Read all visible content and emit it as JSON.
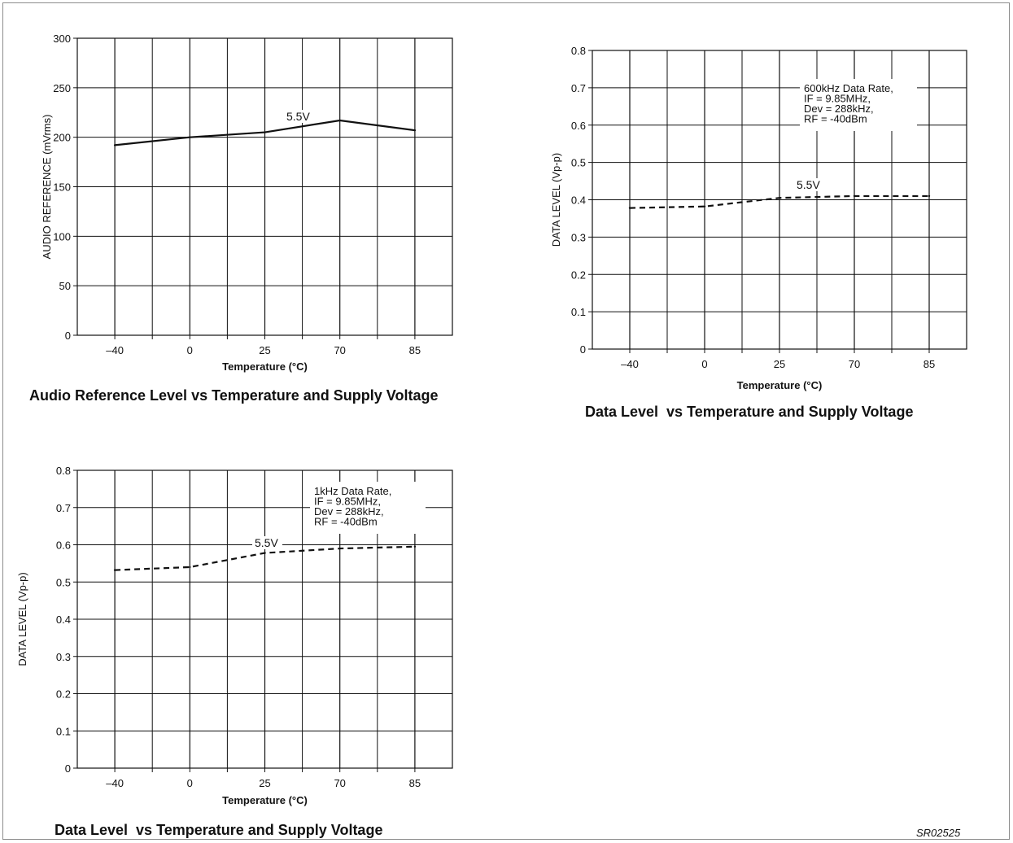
{
  "figure_code": "SR02525",
  "chart_data": [
    {
      "type": "line",
      "caption": "Audio Reference Level vs Temperature and Supply Voltage",
      "xlabel": "Temperature (°C)",
      "ylabel": "AUDIO REFERENCE (mVrms)",
      "categories": [
        "–40",
        "0",
        "25",
        "70",
        "85"
      ],
      "yticks": [
        "0",
        "50",
        "100",
        "150",
        "200",
        "250",
        "300"
      ],
      "ylim": [
        0,
        300
      ],
      "grid": true,
      "series": [
        {
          "name": "5.5V",
          "line_style": "solid",
          "values": [
            192,
            200,
            205,
            217,
            207
          ]
        }
      ]
    },
    {
      "type": "line",
      "caption": "Data Level  vs Temperature and Supply Voltage",
      "xlabel": "Temperature (°C)",
      "ylabel": "DATA LEVEL (Vp-p)",
      "categories": [
        "–40",
        "0",
        "25",
        "70",
        "85"
      ],
      "yticks": [
        "0",
        "0.1",
        "0.2",
        "0.3",
        "0.4",
        "0.5",
        "0.6",
        "0.7",
        "0.8"
      ],
      "ylim": [
        0,
        0.8
      ],
      "grid": true,
      "annotation": [
        "600kHz Data Rate,",
        "IF = 9.85MHz,",
        "Dev = 288kHz,",
        "RF = -40dBm"
      ],
      "series": [
        {
          "name": "5.5V",
          "line_style": "dashed",
          "values": [
            0.378,
            0.382,
            0.405,
            0.41,
            0.41
          ]
        }
      ]
    },
    {
      "type": "line",
      "caption": "Data Level  vs Temperature and Supply Voltage",
      "xlabel": "Temperature (°C)",
      "ylabel": "DATA LEVEL (Vp-p)",
      "categories": [
        "–40",
        "0",
        "25",
        "70",
        "85"
      ],
      "yticks": [
        "0",
        "0.1",
        "0.2",
        "0.3",
        "0.4",
        "0.5",
        "0.6",
        "0.7",
        "0.8"
      ],
      "ylim": [
        0,
        0.8
      ],
      "grid": true,
      "annotation": [
        "1kHz Data Rate,",
        "IF = 9.85MHz,",
        "Dev = 288kHz,",
        "RF = -40dBm"
      ],
      "series": [
        {
          "name": "5.5V",
          "line_style": "dashed",
          "values": [
            0.532,
            0.54,
            0.578,
            0.59,
            0.595
          ]
        }
      ]
    }
  ]
}
